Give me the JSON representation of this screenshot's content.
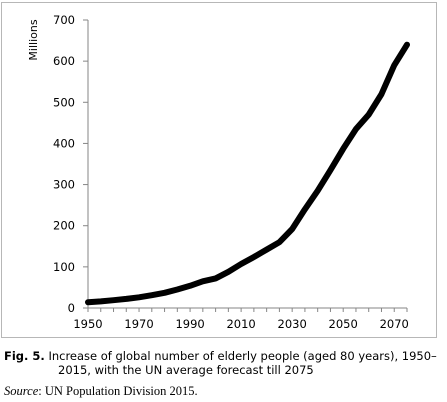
{
  "chart_data": {
    "type": "line",
    "title": "",
    "xlabel": "",
    "ylabel": "Millions",
    "xlim": [
      1950,
      2075
    ],
    "ylim": [
      0,
      700
    ],
    "xticks": [
      1950,
      1970,
      1990,
      2010,
      2030,
      2050,
      2070
    ],
    "yticks": [
      0,
      100,
      200,
      300,
      400,
      500,
      600,
      700
    ],
    "grid": false,
    "legend": "none",
    "series": [
      {
        "color": "#000000",
        "x": [
          1950,
          1955,
          1960,
          1965,
          1970,
          1975,
          1980,
          1985,
          1990,
          1995,
          2000,
          2005,
          2010,
          2015,
          2020,
          2025,
          2030,
          2035,
          2040,
          2045,
          2050,
          2055,
          2060,
          2065,
          2070,
          2075
        ],
        "y": [
          14,
          16,
          19,
          22,
          26,
          31,
          37,
          45,
          54,
          65,
          72,
          88,
          107,
          124,
          142,
          160,
          192,
          240,
          285,
          335,
          387,
          435,
          470,
          520,
          590,
          640
        ]
      }
    ]
  },
  "caption": {
    "label": "Fig. 5.",
    "text": "Increase of global number of elderly people (aged 80 years), 1950–2015, with the UN average forecast till 2075"
  },
  "source": {
    "label": "Source",
    "text": ": UN Population Division 2015."
  }
}
